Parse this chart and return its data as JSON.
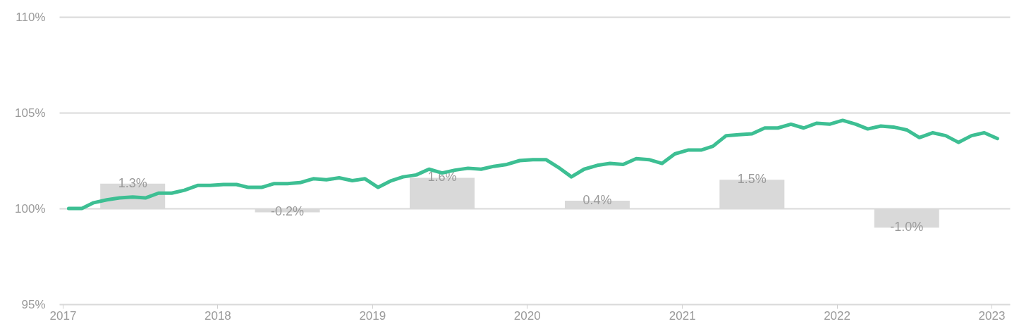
{
  "chart_data": {
    "type": "line",
    "ylim": [
      95,
      110
    ],
    "yticks": [
      {
        "value": 95,
        "label": "95%"
      },
      {
        "value": 100,
        "label": "100%"
      },
      {
        "value": 105,
        "label": "105%"
      },
      {
        "value": 110,
        "label": "110%"
      }
    ],
    "xlim": [
      "2017-01-01",
      "2023-02-05"
    ],
    "xticks": [
      "2017",
      "2018",
      "2019",
      "2020",
      "2021",
      "2022",
      "2023"
    ],
    "grid": "y",
    "legend": false,
    "series": [
      {
        "type": "bar",
        "color": "#d9d9d9",
        "x": [
          "2017-06-15",
          "2018-06-15",
          "2019-06-15",
          "2020-06-15",
          "2021-06-15",
          "2022-06-15"
        ],
        "base": [
          100,
          100,
          100,
          100,
          100,
          100
        ],
        "values": [
          1.3,
          -0.2,
          1.6,
          0.4,
          1.5,
          -1.0
        ],
        "value_labels": [
          "1.3%",
          "-0.2%",
          "1.6%",
          "0.4%",
          "1.5%",
          "-1.0%"
        ]
      },
      {
        "color": "#3dbf93",
        "x": [
          "2017-01-15",
          "2017-02-15",
          "2017-03-15",
          "2017-04-15",
          "2017-05-15",
          "2017-06-15",
          "2017-07-15",
          "2017-08-15",
          "2017-09-15",
          "2017-10-15",
          "2017-11-15",
          "2017-12-15",
          "2018-01-15",
          "2018-02-15",
          "2018-03-15",
          "2018-04-15",
          "2018-05-15",
          "2018-06-15",
          "2018-07-15",
          "2018-08-15",
          "2018-09-15",
          "2018-10-15",
          "2018-11-15",
          "2018-12-15",
          "2019-01-15",
          "2019-02-15",
          "2019-03-15",
          "2019-04-15",
          "2019-05-15",
          "2019-06-15",
          "2019-07-15",
          "2019-08-15",
          "2019-09-15",
          "2019-10-15",
          "2019-11-15",
          "2019-12-15",
          "2020-01-15",
          "2020-02-15",
          "2020-03-15",
          "2020-04-15",
          "2020-05-15",
          "2020-06-15",
          "2020-07-15",
          "2020-08-15",
          "2020-09-15",
          "2020-10-15",
          "2020-11-15",
          "2020-12-15",
          "2021-01-15",
          "2021-02-15",
          "2021-03-15",
          "2021-04-15",
          "2021-05-15",
          "2021-06-15",
          "2021-07-15",
          "2021-08-15",
          "2021-09-15",
          "2021-10-15",
          "2021-11-15",
          "2021-12-15",
          "2022-01-15",
          "2022-02-15",
          "2022-03-15",
          "2022-04-15",
          "2022-05-15",
          "2022-06-15",
          "2022-07-15",
          "2022-08-15",
          "2022-09-15",
          "2022-10-15",
          "2022-11-15",
          "2022-12-15",
          "2023-01-15"
        ],
        "values": [
          100.0,
          100.0,
          100.3,
          100.45,
          100.55,
          100.6,
          100.55,
          100.8,
          100.8,
          100.95,
          101.2,
          101.2,
          101.25,
          101.25,
          101.1,
          101.1,
          101.3,
          101.3,
          101.35,
          101.55,
          101.5,
          101.6,
          101.45,
          101.55,
          101.1,
          101.45,
          101.65,
          101.75,
          102.05,
          101.85,
          102.0,
          102.1,
          102.05,
          102.2,
          102.3,
          102.5,
          102.55,
          102.55,
          102.15,
          101.65,
          102.05,
          102.25,
          102.35,
          102.3,
          102.6,
          102.55,
          102.35,
          102.85,
          103.05,
          103.05,
          103.25,
          103.8,
          103.85,
          103.9,
          104.2,
          104.2,
          104.4,
          104.2,
          104.45,
          104.4,
          104.6,
          104.4,
          104.15,
          104.3,
          104.25,
          104.1,
          103.7,
          103.95,
          103.8,
          103.45,
          103.8,
          103.95,
          103.65
        ]
      }
    ]
  }
}
